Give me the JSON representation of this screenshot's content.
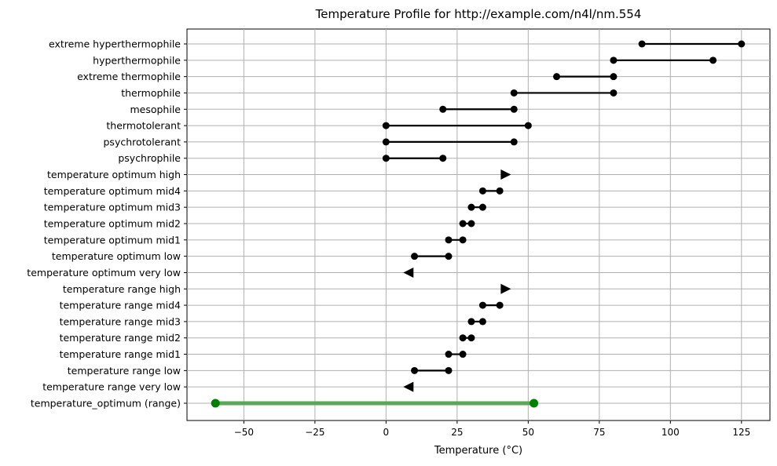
{
  "chart_data": {
    "type": "range-dot",
    "title": "Temperature Profile for http://example.com/n4l/nm.554",
    "xlabel": "Temperature (°C)",
    "ylabel": "",
    "xlim": [
      -70,
      135
    ],
    "xticks": [
      -50,
      -25,
      0,
      25,
      50,
      75,
      100,
      125
    ],
    "xtick_labels": [
      "−50",
      "−25",
      "0",
      "25",
      "50",
      "75",
      "100",
      "125"
    ],
    "grid": true,
    "colors": {
      "range": "#000000",
      "highlight": "#008000",
      "highlight_line": "#5aa65a",
      "grid": "#b0b0b0"
    },
    "rows": [
      {
        "label": "extreme hyperthermophile",
        "kind": "range",
        "low": 90,
        "high": 125
      },
      {
        "label": "hyperthermophile",
        "kind": "range",
        "low": 80,
        "high": 115
      },
      {
        "label": "extreme thermophile",
        "kind": "range",
        "low": 60,
        "high": 80
      },
      {
        "label": "thermophile",
        "kind": "range",
        "low": 45,
        "high": 80
      },
      {
        "label": "mesophile",
        "kind": "range",
        "low": 20,
        "high": 45
      },
      {
        "label": "thermotolerant",
        "kind": "range",
        "low": 0,
        "high": 50
      },
      {
        "label": "psychrotolerant",
        "kind": "range",
        "low": 0,
        "high": 45
      },
      {
        "label": "psychrophile",
        "kind": "range",
        "low": 0,
        "high": 20
      },
      {
        "label": "temperature optimum high",
        "kind": "arrow-right",
        "value": 42
      },
      {
        "label": "temperature optimum mid4",
        "kind": "range",
        "low": 34,
        "high": 40
      },
      {
        "label": "temperature optimum mid3",
        "kind": "range",
        "low": 30,
        "high": 34
      },
      {
        "label": "temperature optimum mid2",
        "kind": "range",
        "low": 27,
        "high": 30
      },
      {
        "label": "temperature optimum mid1",
        "kind": "range",
        "low": 22,
        "high": 27
      },
      {
        "label": "temperature optimum low",
        "kind": "range",
        "low": 10,
        "high": 22
      },
      {
        "label": "temperature optimum very low",
        "kind": "arrow-left",
        "value": 8
      },
      {
        "label": "temperature range high",
        "kind": "arrow-right",
        "value": 42
      },
      {
        "label": "temperature range mid4",
        "kind": "range",
        "low": 34,
        "high": 40
      },
      {
        "label": "temperature range mid3",
        "kind": "range",
        "low": 30,
        "high": 34
      },
      {
        "label": "temperature range mid2",
        "kind": "range",
        "low": 27,
        "high": 30
      },
      {
        "label": "temperature range mid1",
        "kind": "range",
        "low": 22,
        "high": 27
      },
      {
        "label": "temperature range low",
        "kind": "range",
        "low": 10,
        "high": 22
      },
      {
        "label": "temperature range very low",
        "kind": "arrow-left",
        "value": 8
      },
      {
        "label": "temperature_optimum (range)",
        "kind": "highlight-range",
        "low": -60,
        "high": 52
      }
    ]
  }
}
